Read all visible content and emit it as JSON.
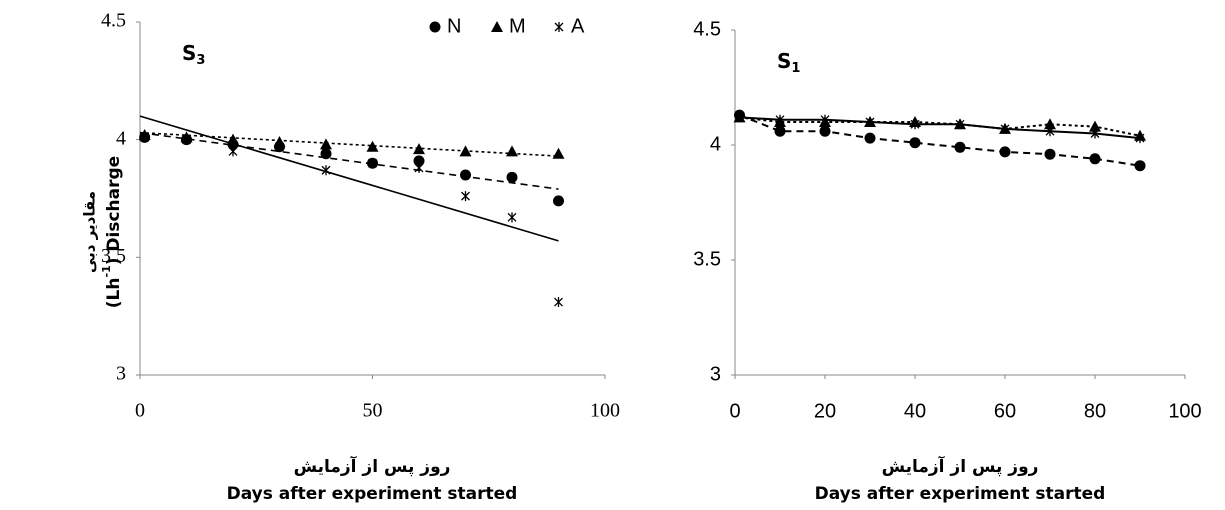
{
  "chart_data": [
    {
      "type": "scatter",
      "title": "S",
      "title_sub": "3",
      "font": "serif",
      "y_label": {
        "fa": "مقادیر دبی",
        "en_pre": "(Lh",
        "en_sup": "-1",
        "en_post": ") Discharge"
      },
      "x_label": [
        "روز پس از آزمایش",
        "Days after experiment started"
      ],
      "xlim": [
        0,
        100
      ],
      "xticks": [
        0,
        50,
        100
      ],
      "ylim": [
        3,
        4.5
      ],
      "yticks": [
        3,
        3.5,
        4,
        4.5
      ],
      "legend": "top-right",
      "x": [
        1,
        10,
        20,
        30,
        40,
        50,
        60,
        70,
        80,
        90
      ],
      "series": [
        {
          "name": "N",
          "marker": "circle",
          "color": "#000",
          "values": [
            4.01,
            4.0,
            3.98,
            3.97,
            3.94,
            3.9,
            3.91,
            3.85,
            3.84,
            3.74
          ],
          "trend": {
            "style": "dashed",
            "x": [
              0,
              90
            ],
            "values": [
              4.03,
              3.79
            ]
          }
        },
        {
          "name": "M",
          "marker": "triangle",
          "color": "#000",
          "values": [
            4.02,
            4.01,
            4.0,
            3.99,
            3.98,
            3.97,
            3.96,
            3.95,
            3.95,
            3.94
          ],
          "trend": {
            "style": "dotted",
            "x": [
              0,
              90
            ],
            "values": [
              4.03,
              3.93
            ]
          }
        },
        {
          "name": "A",
          "marker": "star",
          "color": "#000",
          "values": [
            4.01,
            4.0,
            3.95,
            3.97,
            3.87,
            3.9,
            3.88,
            3.76,
            3.67,
            3.31
          ],
          "trend": {
            "style": "solid",
            "x": [
              0,
              90
            ],
            "values": [
              4.1,
              3.57
            ]
          }
        }
      ]
    },
    {
      "type": "line",
      "title": "S",
      "title_sub": "1",
      "font": "sans",
      "x_label": [
        "روز پس از آزمایش",
        "Days after experiment started"
      ],
      "xlim": [
        0,
        100
      ],
      "xticks": [
        0,
        20,
        40,
        60,
        80,
        100
      ],
      "ylim": [
        3,
        4.5
      ],
      "yticks": [
        3,
        3.5,
        4,
        4.5
      ],
      "x": [
        1,
        10,
        20,
        30,
        40,
        50,
        60,
        70,
        80,
        90
      ],
      "series": [
        {
          "name": "N",
          "marker": "circle",
          "style": "dashed",
          "color": "#000",
          "values": [
            4.13,
            4.06,
            4.06,
            4.03,
            4.01,
            3.99,
            3.97,
            3.96,
            3.94,
            3.91
          ]
        },
        {
          "name": "M",
          "marker": "triangle",
          "style": "dotted",
          "color": "#000",
          "values": [
            4.12,
            4.1,
            4.1,
            4.1,
            4.1,
            4.09,
            4.07,
            4.09,
            4.08,
            4.04
          ]
        },
        {
          "name": "A",
          "marker": "star",
          "style": "solid",
          "color": "#000",
          "values": [
            4.12,
            4.11,
            4.11,
            4.1,
            4.09,
            4.09,
            4.07,
            4.06,
            4.05,
            4.03
          ]
        }
      ]
    }
  ]
}
